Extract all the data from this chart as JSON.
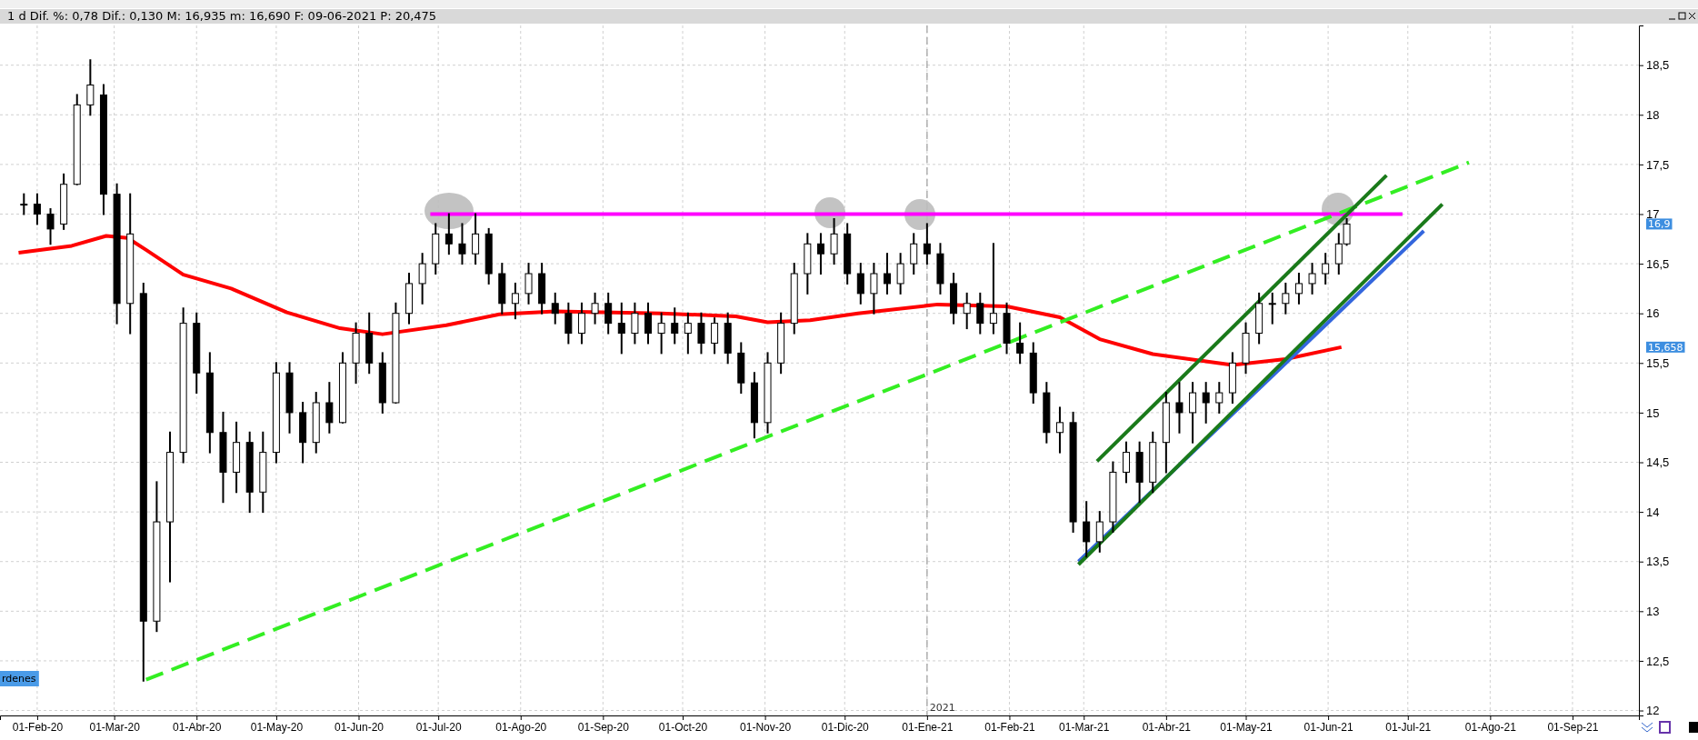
{
  "chart_data": {
    "type": "candlestick",
    "title": "1 d  Dif. %: 0,78  Dif.: 0,130  M: 16,935  m: 16,690  F: 09-06-2021  P: 20,475",
    "x": [
      "2020-01-27",
      "2020-02-01",
      "2020-02-06",
      "2020-02-11",
      "2020-02-16",
      "2020-02-21",
      "2020-02-26",
      "2020-03-02",
      "2020-03-07",
      "2020-03-12",
      "2020-03-17",
      "2020-03-22",
      "2020-03-27",
      "2020-04-01",
      "2020-04-06",
      "2020-04-11",
      "2020-04-16",
      "2020-04-21",
      "2020-04-26",
      "2020-05-01",
      "2020-05-06",
      "2020-05-11",
      "2020-05-16",
      "2020-05-21",
      "2020-05-26",
      "2020-05-31",
      "2020-06-05",
      "2020-06-10",
      "2020-06-15",
      "2020-06-20",
      "2020-06-25",
      "2020-06-30",
      "2020-07-05",
      "2020-07-10",
      "2020-07-15",
      "2020-07-20",
      "2020-07-25",
      "2020-07-30",
      "2020-08-04",
      "2020-08-09",
      "2020-08-14",
      "2020-08-19",
      "2020-08-24",
      "2020-08-29",
      "2020-09-03",
      "2020-09-08",
      "2020-09-13",
      "2020-09-18",
      "2020-09-23",
      "2020-09-28",
      "2020-10-03",
      "2020-10-08",
      "2020-10-13",
      "2020-10-18",
      "2020-10-23",
      "2020-10-28",
      "2020-11-02",
      "2020-11-07",
      "2020-11-12",
      "2020-11-17",
      "2020-11-22",
      "2020-11-27",
      "2020-12-02",
      "2020-12-07",
      "2020-12-12",
      "2020-12-17",
      "2020-12-22",
      "2020-12-27",
      "2021-01-01",
      "2021-01-06",
      "2021-01-11",
      "2021-01-16",
      "2021-01-21",
      "2021-01-26",
      "2021-01-31",
      "2021-02-05",
      "2021-02-10",
      "2021-02-15",
      "2021-02-20",
      "2021-02-25",
      "2021-03-02",
      "2021-03-07",
      "2021-03-12",
      "2021-03-17",
      "2021-03-22",
      "2021-03-27",
      "2021-04-01",
      "2021-04-06",
      "2021-04-11",
      "2021-04-16",
      "2021-04-21",
      "2021-04-26",
      "2021-05-01",
      "2021-05-06",
      "2021-05-11",
      "2021-05-16",
      "2021-05-21",
      "2021-05-26",
      "2021-05-31",
      "2021-06-05",
      "2021-06-08"
    ],
    "ohlc": [
      [
        17.1,
        17.2,
        17.0,
        17.1
      ],
      [
        17.1,
        17.2,
        16.9,
        17.0
      ],
      [
        17.0,
        17.05,
        16.7,
        16.85
      ],
      [
        16.9,
        17.4,
        16.85,
        17.3
      ],
      [
        17.3,
        18.2,
        17.3,
        18.1
      ],
      [
        18.1,
        18.55,
        18.0,
        18.3
      ],
      [
        18.2,
        18.3,
        17.0,
        17.2
      ],
      [
        17.2,
        17.3,
        15.9,
        16.1
      ],
      [
        16.1,
        17.2,
        15.8,
        16.8
      ],
      [
        16.2,
        16.3,
        12.3,
        12.9
      ],
      [
        12.9,
        14.3,
        12.8,
        13.9
      ],
      [
        13.9,
        14.8,
        13.3,
        14.6
      ],
      [
        14.6,
        16.05,
        14.5,
        15.9
      ],
      [
        15.9,
        16.0,
        15.2,
        15.4
      ],
      [
        15.4,
        15.6,
        14.6,
        14.8
      ],
      [
        14.8,
        15.0,
        14.1,
        14.4
      ],
      [
        14.4,
        14.9,
        14.2,
        14.7
      ],
      [
        14.7,
        14.8,
        14.0,
        14.2
      ],
      [
        14.2,
        14.8,
        14.0,
        14.6
      ],
      [
        14.6,
        15.5,
        14.5,
        15.4
      ],
      [
        15.4,
        15.5,
        14.8,
        15.0
      ],
      [
        15.0,
        15.1,
        14.5,
        14.7
      ],
      [
        14.7,
        15.2,
        14.6,
        15.1
      ],
      [
        15.1,
        15.3,
        14.8,
        14.9
      ],
      [
        14.9,
        15.6,
        14.9,
        15.5
      ],
      [
        15.5,
        15.9,
        15.3,
        15.8
      ],
      [
        15.8,
        16.0,
        15.4,
        15.5
      ],
      [
        15.5,
        15.6,
        15.0,
        15.1
      ],
      [
        15.1,
        16.1,
        15.1,
        16.0
      ],
      [
        16.0,
        16.4,
        15.9,
        16.3
      ],
      [
        16.3,
        16.6,
        16.1,
        16.5
      ],
      [
        16.5,
        16.9,
        16.4,
        16.8
      ],
      [
        16.8,
        17.0,
        16.6,
        16.7
      ],
      [
        16.7,
        16.9,
        16.5,
        16.6
      ],
      [
        16.6,
        17.0,
        16.5,
        16.8
      ],
      [
        16.8,
        16.85,
        16.3,
        16.4
      ],
      [
        16.4,
        16.5,
        16.0,
        16.1
      ],
      [
        16.1,
        16.3,
        15.95,
        16.2
      ],
      [
        16.2,
        16.5,
        16.1,
        16.4
      ],
      [
        16.4,
        16.5,
        16.0,
        16.1
      ],
      [
        16.1,
        16.2,
        15.9,
        16.0
      ],
      [
        16.0,
        16.1,
        15.7,
        15.8
      ],
      [
        15.8,
        16.1,
        15.7,
        16.0
      ],
      [
        16.0,
        16.2,
        15.9,
        16.1
      ],
      [
        16.1,
        16.2,
        15.8,
        15.9
      ],
      [
        15.9,
        16.1,
        15.6,
        15.8
      ],
      [
        15.8,
        16.1,
        15.7,
        16.0
      ],
      [
        16.0,
        16.1,
        15.7,
        15.8
      ],
      [
        15.8,
        16.0,
        15.6,
        15.9
      ],
      [
        15.9,
        16.05,
        15.7,
        15.8
      ],
      [
        15.8,
        16.0,
        15.6,
        15.9
      ],
      [
        15.9,
        16.0,
        15.6,
        15.7
      ],
      [
        15.7,
        15.95,
        15.6,
        15.9
      ],
      [
        15.9,
        16.0,
        15.5,
        15.6
      ],
      [
        15.6,
        15.7,
        15.2,
        15.3
      ],
      [
        15.3,
        15.4,
        14.75,
        14.9
      ],
      [
        14.9,
        15.6,
        14.8,
        15.5
      ],
      [
        15.5,
        16.0,
        15.4,
        15.9
      ],
      [
        15.9,
        16.5,
        15.8,
        16.4
      ],
      [
        16.4,
        16.8,
        16.2,
        16.7
      ],
      [
        16.7,
        16.8,
        16.4,
        16.6
      ],
      [
        16.6,
        16.95,
        16.5,
        16.8
      ],
      [
        16.8,
        16.9,
        16.3,
        16.4
      ],
      [
        16.4,
        16.5,
        16.1,
        16.2
      ],
      [
        16.2,
        16.5,
        16.0,
        16.4
      ],
      [
        16.4,
        16.6,
        16.2,
        16.3
      ],
      [
        16.3,
        16.6,
        16.2,
        16.5
      ],
      [
        16.5,
        16.8,
        16.4,
        16.7
      ],
      [
        16.7,
        16.9,
        16.5,
        16.6
      ],
      [
        16.6,
        16.7,
        16.2,
        16.3
      ],
      [
        16.3,
        16.4,
        15.9,
        16.0
      ],
      [
        16.0,
        16.2,
        15.85,
        16.1
      ],
      [
        16.1,
        16.2,
        15.8,
        15.9
      ],
      [
        15.9,
        16.7,
        15.8,
        16.0
      ],
      [
        16.0,
        16.1,
        15.6,
        15.7
      ],
      [
        15.7,
        15.9,
        15.5,
        15.6
      ],
      [
        15.6,
        15.7,
        15.1,
        15.2
      ],
      [
        15.2,
        15.3,
        14.7,
        14.8
      ],
      [
        14.8,
        15.05,
        14.6,
        14.9
      ],
      [
        14.9,
        15.0,
        13.8,
        13.9
      ],
      [
        13.9,
        14.1,
        13.55,
        13.7
      ],
      [
        13.7,
        14.0,
        13.6,
        13.9
      ],
      [
        13.9,
        14.5,
        13.8,
        14.4
      ],
      [
        14.4,
        14.7,
        14.3,
        14.6
      ],
      [
        14.6,
        14.7,
        14.1,
        14.3
      ],
      [
        14.3,
        14.8,
        14.2,
        14.7
      ],
      [
        14.7,
        15.2,
        14.4,
        15.1
      ],
      [
        15.1,
        15.3,
        14.8,
        15.0
      ],
      [
        15.0,
        15.3,
        14.7,
        15.2
      ],
      [
        15.2,
        15.3,
        14.9,
        15.1
      ],
      [
        15.1,
        15.3,
        15.0,
        15.2
      ],
      [
        15.2,
        15.6,
        15.1,
        15.5
      ],
      [
        15.5,
        15.9,
        15.4,
        15.8
      ],
      [
        15.8,
        16.2,
        15.7,
        16.1
      ],
      [
        16.1,
        16.2,
        15.9,
        16.1
      ],
      [
        16.1,
        16.3,
        16.0,
        16.2
      ],
      [
        16.2,
        16.4,
        16.1,
        16.3
      ],
      [
        16.3,
        16.5,
        16.2,
        16.4
      ],
      [
        16.4,
        16.6,
        16.3,
        16.5
      ],
      [
        16.5,
        16.8,
        16.4,
        16.7
      ],
      [
        16.7,
        16.95,
        16.69,
        16.9
      ]
    ],
    "series": [
      {
        "type": "line",
        "color": "#ff0000",
        "x": [
          "2020-01-25",
          "2020-02-14",
          "2020-02-27",
          "2020-03-06",
          "2020-03-13",
          "2020-03-27",
          "2020-04-14",
          "2020-05-05",
          "2020-05-25",
          "2020-06-10",
          "2020-07-04",
          "2020-07-24",
          "2020-08-14",
          "2020-09-23",
          "2020-10-21",
          "2020-11-02",
          "2020-11-18",
          "2020-12-06",
          "2021-01-05",
          "2021-01-31",
          "2021-02-20",
          "2021-03-07",
          "2021-03-27",
          "2021-04-26",
          "2021-05-16",
          "2021-06-06"
        ],
        "values": [
          16.61,
          16.68,
          16.78,
          16.76,
          16.64,
          16.39,
          16.25,
          16.01,
          15.85,
          15.79,
          15.88,
          15.99,
          16.02,
          16.0,
          15.97,
          15.91,
          15.93,
          16.0,
          16.09,
          16.07,
          15.96,
          15.74,
          15.59,
          15.48,
          15.54,
          15.66
        ]
      },
      {
        "type": "line",
        "color": "#3366dd",
        "x": [
          "2021-02-27",
          "2021-07-07"
        ],
        "values": [
          13.5,
          16.83
        ]
      },
      {
        "type": "line",
        "color": "#ff00ff",
        "x": [
          "2020-06-28",
          "2021-06-29"
        ],
        "values": [
          17,
          17
        ]
      },
      {
        "type": "line",
        "color": "#33ee22",
        "line_style": "dashed",
        "x": [
          "2020-03-13",
          "2021-07-24"
        ],
        "values": [
          12.31,
          17.52
        ]
      },
      {
        "type": "line",
        "color": "#1a7a1a",
        "x": [
          "2021-03-06",
          "2021-06-23"
        ],
        "values": [
          14.51,
          17.39
        ]
      },
      {
        "type": "line",
        "color": "#1a7a1a",
        "x": [
          "2021-02-27",
          "2021-07-14"
        ],
        "values": [
          13.47,
          17.1
        ]
      }
    ],
    "xlim": [
      "2020-01-18",
      "2021-09-26"
    ],
    "xticks": [
      {
        "value": "2020-02-01",
        "label": "01-Feb-20"
      },
      {
        "value": "2020-03-01",
        "label": "01-Mar-20"
      },
      {
        "value": "2020-04-01",
        "label": "01-Abr-20"
      },
      {
        "value": "2020-05-01",
        "label": "01-May-20"
      },
      {
        "value": "2020-06-01",
        "label": "01-Jun-20"
      },
      {
        "value": "2020-07-01",
        "label": "01-Jul-20"
      },
      {
        "value": "2020-08-01",
        "label": "01-Ago-20"
      },
      {
        "value": "2020-09-01",
        "label": "01-Sep-20"
      },
      {
        "value": "2020-10-01",
        "label": "01-Oct-20"
      },
      {
        "value": "2020-11-01",
        "label": "01-Nov-20"
      },
      {
        "value": "2020-12-01",
        "label": "01-Dic-20"
      },
      {
        "value": "2021-01-01",
        "label": "01-Ene-21"
      },
      {
        "value": "2021-02-01",
        "label": "01-Feb-21"
      },
      {
        "value": "2021-03-01",
        "label": "01-Mar-21"
      },
      {
        "value": "2021-04-01",
        "label": "01-Abr-21"
      },
      {
        "value": "2021-05-01",
        "label": "01-May-21"
      },
      {
        "value": "2021-06-01",
        "label": "01-Jun-21"
      },
      {
        "value": "2021-07-01",
        "label": "01-Jul-21"
      },
      {
        "value": "2021-08-01",
        "label": "01-Ago-21"
      },
      {
        "value": "2021-09-01",
        "label": "01-Sep-21"
      }
    ],
    "ylim": [
      11.95,
      18.9
    ],
    "yticks": [
      12,
      {
        "value": 12.5,
        "label": "12,5"
      },
      13,
      {
        "value": 13.5,
        "label": "13,5"
      },
      14,
      {
        "value": 14.5,
        "label": "14,5"
      },
      15,
      {
        "value": 15.5,
        "label": "15,5"
      },
      16,
      {
        "value": 16.5,
        "label": "16,5"
      },
      17,
      {
        "value": 17.5,
        "label": "17,5"
      },
      18,
      {
        "value": 18.5,
        "label": "18,5"
      }
    ],
    "grid": true,
    "ref_lines": [
      {
        "axis": "x",
        "value": "2021-01-01",
        "label": "2021",
        "line_style": "dashed",
        "color": "#b0b0b0"
      }
    ],
    "annotations": [
      "16,9",
      "15,658",
      "rdenes"
    ]
  }
}
